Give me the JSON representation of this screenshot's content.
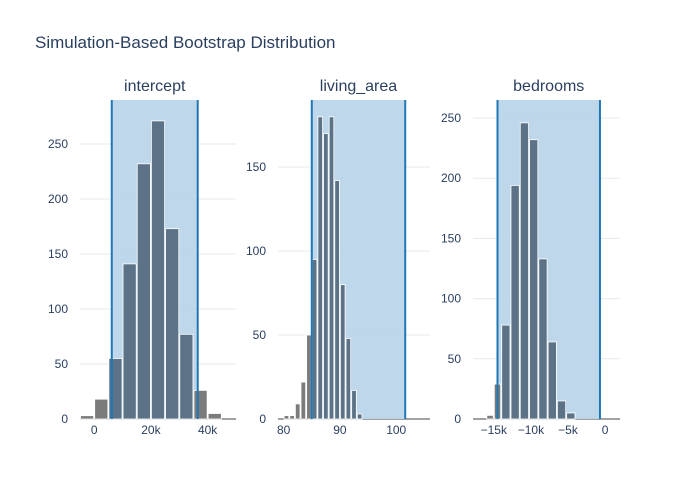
{
  "chart_data": {
    "type": "bar",
    "title": "Simulation-Based Bootstrap Distribution",
    "legend": "none",
    "grid": true,
    "colors": {
      "bar": "#5b7287",
      "bar_outside": "#7b7b7b",
      "ci_fill": "#bcd5ea",
      "ci_line": "#1f77b4",
      "grid": "#e6e9ef",
      "axis_text": "#2a3f5f"
    },
    "panels": [
      {
        "name": "intercept",
        "x_ticks": [
          "0",
          "20k",
          "40k"
        ],
        "x_tick_values": [
          0,
          20000,
          40000
        ],
        "xlim": [
          -5000,
          50000
        ],
        "ylim": [
          0,
          290
        ],
        "y_ticks": [
          0,
          50,
          100,
          150,
          200,
          250
        ],
        "ci": [
          6200,
          36500
        ],
        "bins": [
          {
            "x0": -5000,
            "x1": 0,
            "count": 3
          },
          {
            "x0": 0,
            "x1": 5000,
            "count": 18
          },
          {
            "x0": 5000,
            "x1": 10000,
            "count": 55
          },
          {
            "x0": 10000,
            "x1": 15000,
            "count": 141
          },
          {
            "x0": 15000,
            "x1": 20000,
            "count": 232
          },
          {
            "x0": 20000,
            "x1": 25000,
            "count": 271
          },
          {
            "x0": 25000,
            "x1": 30000,
            "count": 173
          },
          {
            "x0": 30000,
            "x1": 35000,
            "count": 77
          },
          {
            "x0": 35000,
            "x1": 40000,
            "count": 26
          },
          {
            "x0": 40000,
            "x1": 45000,
            "count": 5
          }
        ]
      },
      {
        "name": "living_area",
        "x_ticks": [
          "80",
          "90",
          "100"
        ],
        "x_tick_values": [
          80,
          90,
          100
        ],
        "xlim": [
          79,
          106
        ],
        "ylim": [
          0,
          190
        ],
        "y_ticks": [
          0,
          50,
          100,
          150
        ],
        "ci": [
          85,
          101.6
        ],
        "bins": [
          {
            "x0": 80,
            "x1": 81,
            "count": 2
          },
          {
            "x0": 81,
            "x1": 82,
            "count": 2
          },
          {
            "x0": 82,
            "x1": 83,
            "count": 9
          },
          {
            "x0": 83,
            "x1": 84,
            "count": 22
          },
          {
            "x0": 84,
            "x1": 85,
            "count": 50
          },
          {
            "x0": 85,
            "x1": 86,
            "count": 95
          },
          {
            "x0": 86,
            "x1": 87,
            "count": 180
          },
          {
            "x0": 87,
            "x1": 88,
            "count": 170
          },
          {
            "x0": 88,
            "x1": 89,
            "count": 180
          },
          {
            "x0": 89,
            "x1": 90,
            "count": 142
          },
          {
            "x0": 90,
            "x1": 91,
            "count": 80
          },
          {
            "x0": 91,
            "x1": 92,
            "count": 48
          },
          {
            "x0": 92,
            "x1": 93,
            "count": 17
          },
          {
            "x0": 93,
            "x1": 94,
            "count": 3
          }
        ]
      },
      {
        "name": "bedrooms",
        "x_ticks": [
          "−15k",
          "−10k",
          "−5k",
          "0"
        ],
        "x_tick_values": [
          -15000,
          -10000,
          -5000,
          0
        ],
        "xlim": [
          -17800,
          2000
        ],
        "ylim": [
          0,
          265
        ],
        "y_ticks": [
          0,
          50,
          100,
          150,
          200,
          250
        ],
        "ci": [
          -14500,
          -700
        ],
        "bins": [
          {
            "x0": -16000,
            "x1": -15000,
            "count": 3
          },
          {
            "x0": -15000,
            "x1": -14000,
            "count": 29
          },
          {
            "x0": -14000,
            "x1": -12750,
            "count": 78
          },
          {
            "x0": -12750,
            "x1": -11500,
            "count": 194
          },
          {
            "x0": -11500,
            "x1": -10250,
            "count": 246
          },
          {
            "x0": -10250,
            "x1": -9000,
            "count": 232
          },
          {
            "x0": -9000,
            "x1": -7750,
            "count": 133
          },
          {
            "x0": -7750,
            "x1": -6500,
            "count": 64
          },
          {
            "x0": -6500,
            "x1": -5250,
            "count": 15
          },
          {
            "x0": -5250,
            "x1": -4000,
            "count": 5
          }
        ]
      }
    ]
  }
}
